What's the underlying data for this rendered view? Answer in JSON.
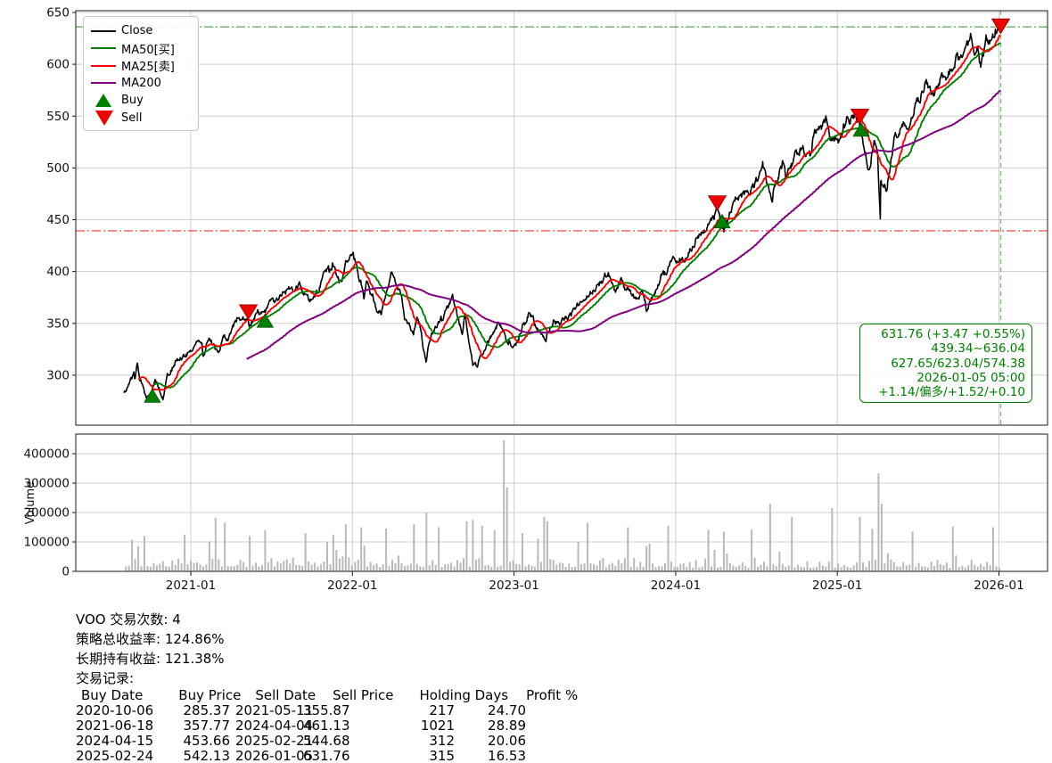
{
  "ui": {
    "legend": {
      "items": [
        {
          "label": "Close",
          "swatch": "line",
          "color": "#000000"
        },
        {
          "label": "MA50[买]",
          "swatch": "line",
          "color": "#008000"
        },
        {
          "label": "MA25[卖]",
          "swatch": "line",
          "color": "#ff0000"
        },
        {
          "label": "MA200",
          "swatch": "line",
          "color": "#800080"
        },
        {
          "label": "Buy",
          "swatch": "triangle-up",
          "color": "#008000"
        },
        {
          "label": "Sell",
          "swatch": "triangle-down",
          "color": "#ee0000"
        }
      ]
    },
    "annotation": {
      "color": "#008000",
      "lines": [
        "631.76 (+3.47 +0.55%)",
        "439.34~636.04",
        "627.65/623.04/574.38",
        "2026-01-05 05:00",
        "+1.14/偏多/+1.52/+0.10"
      ]
    },
    "stats": {
      "lines": [
        "VOO 交易次数: 4",
        "策略总收益率: 124.86%",
        "长期持有收益: 121.38%",
        "交易记录:"
      ]
    }
  },
  "trades": {
    "headers": [
      "Buy Date",
      "Buy Price",
      "Sell Date",
      "Sell Price",
      "Holding Days",
      "Profit %"
    ],
    "rows": [
      [
        "2020-10-06",
        "285.37",
        "2021-05-11",
        "355.87",
        "217",
        "24.70"
      ],
      [
        "2021-06-18",
        "357.77",
        "2024-04-04",
        "461.13",
        "1021",
        "28.89"
      ],
      [
        "2024-04-15",
        "453.66",
        "2025-02-21",
        "544.68",
        "312",
        "20.06"
      ],
      [
        "2025-02-24",
        "542.13",
        "2026-01-05",
        "631.76",
        "315",
        "16.53"
      ]
    ]
  },
  "chart_data": {
    "type": "line",
    "title": "",
    "symbol": "VOO",
    "ylim": [
      252,
      652
    ],
    "y_ticks": [
      300,
      350,
      400,
      450,
      500,
      550,
      600,
      650
    ],
    "x_ticks": [
      "2021-01",
      "2022-01",
      "2023-01",
      "2024-01",
      "2025-01",
      "2026-01"
    ],
    "grid": true,
    "legend_position": "upper-left",
    "series": [
      {
        "name": "Close",
        "color": "#000000"
      },
      {
        "name": "MA50[买]",
        "color": "#008000",
        "derived": "moving_average",
        "window": 50
      },
      {
        "name": "MA25[卖]",
        "color": "#ff0000",
        "derived": "moving_average",
        "window": 25
      },
      {
        "name": "MA200",
        "color": "#800080",
        "derived": "moving_average",
        "window": 200
      }
    ],
    "close_keypoints": [
      [
        "2020-08-03",
        281
      ],
      [
        "2020-08-25",
        300
      ],
      [
        "2020-08-28",
        295
      ],
      [
        "2020-09-02",
        310
      ],
      [
        "2020-09-08",
        292
      ],
      [
        "2020-09-24",
        276
      ],
      [
        "2020-10-06",
        285.4
      ],
      [
        "2020-10-12",
        298
      ],
      [
        "2020-10-30",
        279
      ],
      [
        "2020-11-09",
        306
      ],
      [
        "2020-11-30",
        314
      ],
      [
        "2020-12-31",
        323
      ],
      [
        "2021-01-26",
        330
      ],
      [
        "2021-01-29",
        318
      ],
      [
        "2021-02-12",
        335
      ],
      [
        "2021-03-04",
        325
      ],
      [
        "2021-03-17",
        340
      ],
      [
        "2021-03-25",
        333
      ],
      [
        "2021-04-16",
        357
      ],
      [
        "2021-04-29",
        361
      ],
      [
        "2021-05-11",
        355.9
      ],
      [
        "2021-05-13",
        349
      ],
      [
        "2021-06-03",
        361
      ],
      [
        "2021-06-18",
        357.8
      ],
      [
        "2021-06-30",
        368
      ],
      [
        "2021-07-19",
        372
      ],
      [
        "2021-07-26",
        377
      ],
      [
        "2021-08-31",
        387
      ],
      [
        "2021-09-02",
        388
      ],
      [
        "2021-10-04",
        371
      ],
      [
        "2021-10-26",
        394
      ],
      [
        "2021-11-08",
        405
      ],
      [
        "2021-11-10",
        398
      ],
      [
        "2021-11-18",
        404
      ],
      [
        "2021-12-03",
        392
      ],
      [
        "2021-12-28",
        412
      ],
      [
        "2022-01-03",
        413
      ],
      [
        "2022-01-27",
        378
      ],
      [
        "2022-02-02",
        395
      ],
      [
        "2022-02-23",
        366
      ],
      [
        "2022-03-08",
        360
      ],
      [
        "2022-03-29",
        400
      ],
      [
        "2022-04-21",
        382
      ],
      [
        "2022-04-29",
        356
      ],
      [
        "2022-05-19",
        339
      ],
      [
        "2022-05-27",
        356
      ],
      [
        "2022-06-16",
        317
      ],
      [
        "2022-06-24",
        336
      ],
      [
        "2022-07-29",
        356
      ],
      [
        "2022-08-16",
        372
      ],
      [
        "2022-09-06",
        340
      ],
      [
        "2022-09-12",
        356
      ],
      [
        "2022-09-30",
        314
      ],
      [
        "2022-10-12",
        313
      ],
      [
        "2022-11-01",
        336
      ],
      [
        "2022-11-30",
        351
      ],
      [
        "2022-12-19",
        331
      ],
      [
        "2022-12-28",
        328
      ],
      [
        "2023-01-03",
        330
      ],
      [
        "2023-02-02",
        358
      ],
      [
        "2023-03-02",
        342
      ],
      [
        "2023-03-13",
        336
      ],
      [
        "2023-03-31",
        355
      ],
      [
        "2023-05-04",
        352
      ],
      [
        "2023-06-15",
        380
      ],
      [
        "2023-06-30",
        384
      ],
      [
        "2023-07-31",
        398
      ],
      [
        "2023-08-18",
        382
      ],
      [
        "2023-09-01",
        392
      ],
      [
        "2023-09-27",
        372
      ],
      [
        "2023-10-17",
        380
      ],
      [
        "2023-10-27",
        366
      ],
      [
        "2023-11-30",
        393
      ],
      [
        "2023-12-28",
        411
      ],
      [
        "2024-01-05",
        406
      ],
      [
        "2024-01-31",
        418
      ],
      [
        "2024-02-13",
        424
      ],
      [
        "2024-03-01",
        440
      ],
      [
        "2024-03-28",
        452
      ],
      [
        "2024-04-04",
        458
      ],
      [
        "2024-04-19",
        443
      ],
      [
        "2024-05-21",
        472
      ],
      [
        "2024-05-31",
        468
      ],
      [
        "2024-06-28",
        483
      ],
      [
        "2024-07-16",
        502
      ],
      [
        "2024-07-25",
        484
      ],
      [
        "2024-08-05",
        472
      ],
      [
        "2024-08-30",
        502
      ],
      [
        "2024-09-06",
        487
      ],
      [
        "2024-09-30",
        512
      ],
      [
        "2024-10-17",
        520
      ],
      [
        "2024-10-31",
        512
      ],
      [
        "2024-11-11",
        532
      ],
      [
        "2024-11-29",
        540
      ],
      [
        "2024-12-06",
        545
      ],
      [
        "2024-12-19",
        526
      ],
      [
        "2025-01-10",
        528
      ],
      [
        "2025-01-23",
        545
      ],
      [
        "2025-02-19",
        550
      ],
      [
        "2025-02-21",
        544.7
      ],
      [
        "2025-02-24",
        542.1
      ],
      [
        "2025-03-13",
        503
      ],
      [
        "2025-03-25",
        519
      ],
      [
        "2025-04-02",
        508
      ],
      [
        "2025-04-08",
        455
      ],
      [
        "2025-04-09",
        493
      ],
      [
        "2025-04-21",
        478
      ],
      [
        "2025-05-02",
        512
      ],
      [
        "2025-05-16",
        535
      ],
      [
        "2025-06-13",
        548
      ],
      [
        "2025-06-30",
        565
      ],
      [
        "2025-07-28",
        580
      ],
      [
        "2025-08-01",
        568
      ],
      [
        "2025-08-28",
        590
      ],
      [
        "2025-09-30",
        610
      ],
      [
        "2025-10-09",
        608
      ],
      [
        "2025-10-29",
        626
      ],
      [
        "2025-11-04",
        614
      ],
      [
        "2025-11-13",
        619
      ],
      [
        "2025-11-21",
        600
      ],
      [
        "2025-12-01",
        624
      ],
      [
        "2025-12-10",
        621
      ],
      [
        "2025-12-24",
        636
      ],
      [
        "2026-01-02",
        634
      ],
      [
        "2026-01-05",
        631.76
      ]
    ],
    "markers": {
      "buy": [
        [
          "2020-10-06",
          285.37
        ],
        [
          "2021-06-18",
          357.77
        ],
        [
          "2024-04-15",
          453.66
        ],
        [
          "2025-02-24",
          542.13
        ]
      ],
      "sell": [
        [
          "2021-05-11",
          355.87
        ],
        [
          "2024-04-04",
          461.13
        ],
        [
          "2025-02-21",
          544.68
        ],
        [
          "2026-01-05",
          631.76
        ]
      ]
    },
    "hlines": [
      {
        "y": 636.04,
        "color": "#008000",
        "style": "dashdot",
        "opacity": 0.6
      },
      {
        "y": 439.34,
        "color": "#ff2222",
        "style": "dashdot",
        "opacity": 0.75
      }
    ],
    "vlines": [
      {
        "x": "2026-01-05",
        "color": "#2ca02c",
        "style": "dashed",
        "opacity": 0.65
      }
    ],
    "volume": {
      "ylabel": "Volume",
      "y_ticks": [
        0,
        100000,
        200000,
        300000,
        400000
      ],
      "ylim": [
        0,
        466000
      ],
      "bar_color": "#b9b9b9",
      "spikes": [
        [
          "2020-09-18",
          120000
        ],
        [
          "2020-12-18",
          125000
        ],
        [
          "2021-02-26",
          182000
        ],
        [
          "2021-03-19",
          165000
        ],
        [
          "2021-05-14",
          120000
        ],
        [
          "2021-06-18",
          140000
        ],
        [
          "2021-09-17",
          130000
        ],
        [
          "2021-11-19",
          125000
        ],
        [
          "2021-12-17",
          160000
        ],
        [
          "2022-01-21",
          150000
        ],
        [
          "2022-03-18",
          145000
        ],
        [
          "2022-05-20",
          160000
        ],
        [
          "2022-06-17",
          200000
        ],
        [
          "2022-07-15",
          150000
        ],
        [
          "2022-09-16",
          170000
        ],
        [
          "2022-09-30",
          175000
        ],
        [
          "2022-10-21",
          155000
        ],
        [
          "2022-11-18",
          140000
        ],
        [
          "2022-12-09",
          445000
        ],
        [
          "2022-12-16",
          285000
        ],
        [
          "2023-01-20",
          130000
        ],
        [
          "2023-03-10",
          185000
        ],
        [
          "2023-03-17",
          170000
        ],
        [
          "2023-06-16",
          165000
        ],
        [
          "2023-09-15",
          150000
        ],
        [
          "2023-12-15",
          155000
        ],
        [
          "2024-03-15",
          140000
        ],
        [
          "2024-04-19",
          135000
        ],
        [
          "2024-06-21",
          142000
        ],
        [
          "2024-08-02",
          230000
        ],
        [
          "2024-09-20",
          185000
        ],
        [
          "2024-12-20",
          215000
        ],
        [
          "2025-02-21",
          185000
        ],
        [
          "2025-03-21",
          145000
        ],
        [
          "2025-04-04",
          333000
        ],
        [
          "2025-04-11",
          230000
        ],
        [
          "2025-06-20",
          135000
        ],
        [
          "2025-09-19",
          152000
        ],
        [
          "2025-12-19",
          150000
        ]
      ]
    }
  }
}
